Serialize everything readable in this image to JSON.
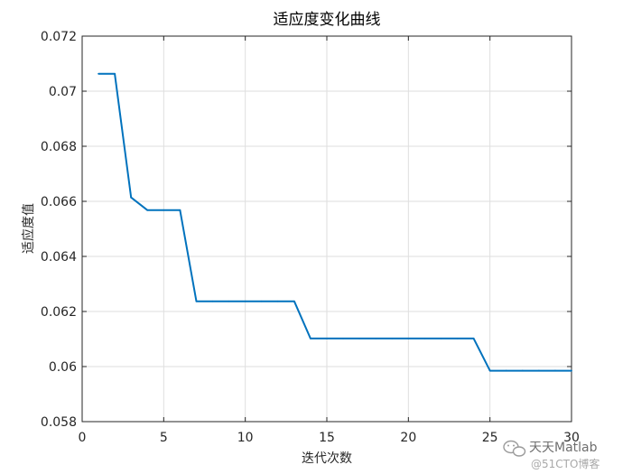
{
  "chart_data": {
    "type": "line",
    "title": "适应度变化曲线",
    "xlabel": "迭代次数",
    "ylabel": "适应度值",
    "xlim": [
      0,
      30
    ],
    "ylim": [
      0.058,
      0.072
    ],
    "xticks": [
      0,
      5,
      10,
      15,
      20,
      25,
      30
    ],
    "yticks": [
      0.058,
      0.06,
      0.062,
      0.064,
      0.066,
      0.068,
      0.07,
      0.072
    ],
    "xtick_labels": [
      "0",
      "5",
      "10",
      "15",
      "20",
      "25",
      "30"
    ],
    "ytick_labels": [
      "0.058",
      "0.06",
      "0.062",
      "0.064",
      "0.066",
      "0.068",
      "0.07",
      "0.072"
    ],
    "grid": true,
    "series": [
      {
        "color": "#0072BD",
        "x": [
          1,
          2,
          3,
          4,
          5,
          6,
          7,
          8,
          9,
          10,
          11,
          12,
          13,
          14,
          15,
          16,
          17,
          18,
          19,
          20,
          21,
          22,
          23,
          24,
          25,
          26,
          27,
          28,
          29,
          30
        ],
        "y": [
          0.07063,
          0.07063,
          0.06614,
          0.06568,
          0.06568,
          0.06568,
          0.06237,
          0.06237,
          0.06237,
          0.06237,
          0.06237,
          0.06237,
          0.06237,
          0.06102,
          0.06102,
          0.06102,
          0.06102,
          0.06102,
          0.06102,
          0.06102,
          0.06102,
          0.06102,
          0.06102,
          0.06102,
          0.05985,
          0.05985,
          0.05985,
          0.05985,
          0.05985,
          0.05985
        ]
      }
    ]
  },
  "watermark": {
    "line1": "天天Matlab",
    "line2": "@51CTO博客",
    "icon": "wechat-icon"
  }
}
